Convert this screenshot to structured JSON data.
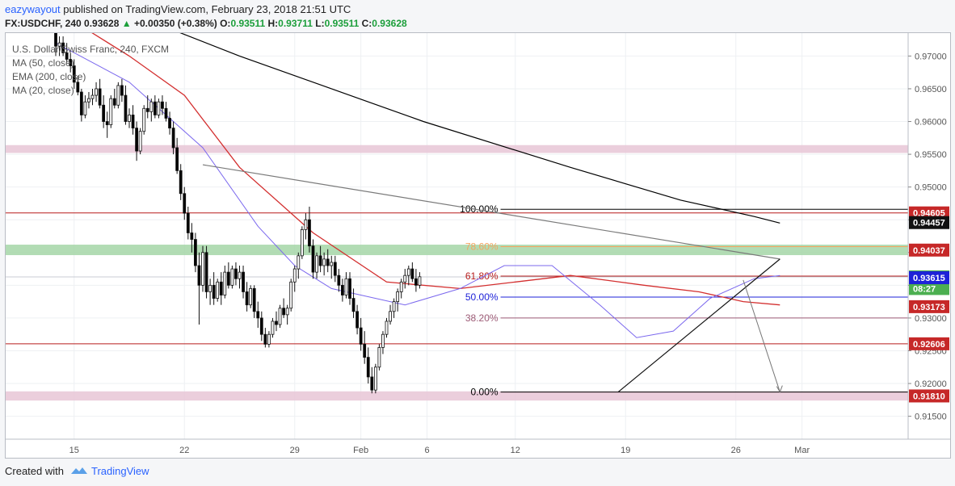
{
  "header": {
    "publisher": "eazywayout",
    "published_text": "published on TradingView.com, February 23, 2018 21:51 UTC",
    "symbol": "FX:USDCHF, 240",
    "last": "0.93628",
    "change": "+0.00350 (+0.38%)",
    "o_label": "O:",
    "o": "0.93511",
    "h_label": "H:",
    "h": "0.93711",
    "l_label": "L:",
    "l": "0.93511",
    "c_label": "C:",
    "c": "0.93628"
  },
  "legend": {
    "title": "U.S. Dollar/Swiss Franc, 240, FXCM",
    "ma50": "MA (50, close)",
    "ema200": "EMA (200, close)",
    "ma20": "MA (20, close)"
  },
  "footer": {
    "created_with": "Created with",
    "brand": "TradingView"
  },
  "colors": {
    "up": "#ffffff",
    "down": "#000000",
    "ma50": "#000000",
    "ema200": "#d32f2f",
    "ma20": "#7b68ee",
    "fib_line": "#b71c1c",
    "band_pink": "#e8c6d6",
    "band_green": "#a5d6a7",
    "current_price_bg": "#4caf50",
    "blue_line": "#1e22d8"
  },
  "chart_data": {
    "type": "candlestick",
    "ylim": [
      0.9115,
      0.9735
    ],
    "y_ticks": [
      "0.97000",
      "0.96500",
      "0.96000",
      "0.95500",
      "0.95000",
      "0.94500",
      "0.94000",
      "0.93500",
      "0.93000",
      "0.92500",
      "0.92000",
      "0.91500"
    ],
    "x_ticks": [
      {
        "label": "15",
        "i": 5
      },
      {
        "label": "22",
        "i": 35
      },
      {
        "label": "29",
        "i": 65
      },
      {
        "label": "Feb",
        "i": 83
      },
      {
        "label": "6",
        "i": 101
      },
      {
        "label": "12",
        "i": 125
      },
      {
        "label": "19",
        "i": 155
      },
      {
        "label": "26",
        "i": 185
      },
      {
        "label": "Mar",
        "i": 203
      }
    ],
    "n_slots": 210,
    "price_labels": [
      {
        "text": "0.94605",
        "value": 0.94605,
        "style": "red"
      },
      {
        "text": "0.94457",
        "value": 0.94457,
        "style": "black"
      },
      {
        "text": "0.94037",
        "value": 0.94037,
        "style": "red"
      },
      {
        "text": "0.93628",
        "value": 0.93628,
        "style": "green"
      },
      {
        "text": "08:27",
        "value": 0.9345,
        "style": "green"
      },
      {
        "text": "0.93615",
        "value": 0.93615,
        "style": "blue"
      },
      {
        "text": "0.93173",
        "value": 0.93173,
        "style": "red"
      },
      {
        "text": "0.92606",
        "value": 0.92606,
        "style": "red"
      },
      {
        "text": "0.91810",
        "value": 0.9181,
        "style": "red"
      }
    ],
    "fib_levels": [
      {
        "label": "100.00%",
        "value": 0.9466,
        "color": "#000000"
      },
      {
        "label": "78.60%",
        "value": 0.9409,
        "color": "#f4a460"
      },
      {
        "label": "61.80%",
        "value": 0.9364,
        "color": "#b71c1c"
      },
      {
        "label": "50.00%",
        "value": 0.9332,
        "color": "#1e22d8"
      },
      {
        "label": "38.20%",
        "value": 0.93,
        "color": "#9c5a75"
      },
      {
        "label": "0.00%",
        "value": 0.9187,
        "color": "#000000"
      }
    ],
    "horizontal_lines": [
      0.94605,
      0.92606,
      0.93615
    ],
    "bands": [
      {
        "from": 0.9552,
        "to": 0.9564,
        "color": "pink"
      },
      {
        "from": 0.9396,
        "to": 0.9412,
        "color": "green"
      },
      {
        "from": 0.9174,
        "to": 0.9188,
        "color": "pink"
      }
    ],
    "trendlines": [
      {
        "from": {
          "i": 40,
          "v": 0.9534
        },
        "to": {
          "i": 197,
          "v": 0.939
        }
      },
      {
        "from": {
          "i": 153,
          "v": 0.9187
        },
        "to": {
          "i": 197,
          "v": 0.939
        }
      }
    ],
    "projection": [
      {
        "i": 187,
        "v": 0.9358
      },
      {
        "i": 197,
        "v": 0.9187
      }
    ],
    "ohlc": [
      [
        0.974,
        0.9745,
        0.97,
        0.9715
      ],
      [
        0.9715,
        0.973,
        0.97,
        0.972
      ],
      [
        0.972,
        0.973,
        0.97,
        0.9705
      ],
      [
        0.9705,
        0.972,
        0.969,
        0.9695
      ],
      [
        0.9695,
        0.9705,
        0.9675,
        0.9685
      ],
      [
        0.9685,
        0.9695,
        0.965,
        0.966
      ],
      [
        0.966,
        0.967,
        0.964,
        0.9645
      ],
      [
        0.9645,
        0.965,
        0.96,
        0.961
      ],
      [
        0.961,
        0.964,
        0.9605,
        0.963
      ],
      [
        0.963,
        0.9645,
        0.962,
        0.9635
      ],
      [
        0.9635,
        0.965,
        0.9625,
        0.964
      ],
      [
        0.964,
        0.966,
        0.963,
        0.965
      ],
      [
        0.965,
        0.9665,
        0.962,
        0.9625
      ],
      [
        0.9625,
        0.964,
        0.959,
        0.96
      ],
      [
        0.96,
        0.9615,
        0.9575,
        0.9595
      ],
      [
        0.9595,
        0.964,
        0.959,
        0.9635
      ],
      [
        0.9635,
        0.965,
        0.962,
        0.9625
      ],
      [
        0.9625,
        0.966,
        0.962,
        0.9655
      ],
      [
        0.9655,
        0.9665,
        0.963,
        0.964
      ],
      [
        0.964,
        0.9655,
        0.9595,
        0.96
      ],
      [
        0.96,
        0.962,
        0.959,
        0.961
      ],
      [
        0.961,
        0.9625,
        0.958,
        0.959
      ],
      [
        0.959,
        0.96,
        0.954,
        0.9555
      ],
      [
        0.9555,
        0.959,
        0.955,
        0.9585
      ],
      [
        0.9585,
        0.9625,
        0.958,
        0.962
      ],
      [
        0.962,
        0.964,
        0.9605,
        0.9615
      ],
      [
        0.9615,
        0.9635,
        0.96,
        0.963
      ],
      [
        0.963,
        0.964,
        0.9605,
        0.961
      ],
      [
        0.961,
        0.9635,
        0.9605,
        0.963
      ],
      [
        0.963,
        0.964,
        0.961,
        0.962
      ],
      [
        0.962,
        0.963,
        0.96,
        0.9605
      ],
      [
        0.9605,
        0.9615,
        0.958,
        0.959
      ],
      [
        0.959,
        0.96,
        0.955,
        0.956
      ],
      [
        0.956,
        0.9575,
        0.952,
        0.9525
      ],
      [
        0.9525,
        0.9535,
        0.948,
        0.949
      ],
      [
        0.949,
        0.95,
        0.945,
        0.946
      ],
      [
        0.946,
        0.947,
        0.942,
        0.943
      ],
      [
        0.943,
        0.9445,
        0.94,
        0.942
      ],
      [
        0.942,
        0.943,
        0.937,
        0.938
      ],
      [
        0.938,
        0.94,
        0.929,
        0.935
      ],
      [
        0.935,
        0.941,
        0.934,
        0.94
      ],
      [
        0.94,
        0.941,
        0.933,
        0.934
      ],
      [
        0.934,
        0.936,
        0.932,
        0.935
      ],
      [
        0.935,
        0.937,
        0.932,
        0.933
      ],
      [
        0.933,
        0.936,
        0.9325,
        0.9355
      ],
      [
        0.9355,
        0.937,
        0.932,
        0.9335
      ],
      [
        0.9335,
        0.938,
        0.933,
        0.937
      ],
      [
        0.937,
        0.9385,
        0.9345,
        0.935
      ],
      [
        0.935,
        0.938,
        0.9345,
        0.9375
      ],
      [
        0.9375,
        0.9385,
        0.935,
        0.936
      ],
      [
        0.936,
        0.938,
        0.9345,
        0.937
      ],
      [
        0.937,
        0.938,
        0.933,
        0.934
      ],
      [
        0.934,
        0.9355,
        0.931,
        0.932
      ],
      [
        0.932,
        0.935,
        0.9315,
        0.9345
      ],
      [
        0.9345,
        0.935,
        0.93,
        0.931
      ],
      [
        0.931,
        0.9325,
        0.9285,
        0.93
      ],
      [
        0.93,
        0.931,
        0.9265,
        0.9275
      ],
      [
        0.9275,
        0.9285,
        0.9255,
        0.926
      ],
      [
        0.926,
        0.928,
        0.9255,
        0.9275
      ],
      [
        0.9275,
        0.93,
        0.927,
        0.9295
      ],
      [
        0.9295,
        0.931,
        0.928,
        0.929
      ],
      [
        0.929,
        0.932,
        0.9285,
        0.9315
      ],
      [
        0.9315,
        0.933,
        0.93,
        0.9305
      ],
      [
        0.9305,
        0.932,
        0.929,
        0.9315
      ],
      [
        0.9315,
        0.936,
        0.931,
        0.9355
      ],
      [
        0.9355,
        0.938,
        0.934,
        0.9375
      ],
      [
        0.9375,
        0.94,
        0.936,
        0.9395
      ],
      [
        0.9395,
        0.944,
        0.939,
        0.9435
      ],
      [
        0.9435,
        0.946,
        0.942,
        0.945
      ],
      [
        0.945,
        0.947,
        0.94,
        0.941
      ],
      [
        0.941,
        0.942,
        0.936,
        0.937
      ],
      [
        0.937,
        0.94,
        0.936,
        0.9395
      ],
      [
        0.9395,
        0.941,
        0.937,
        0.938
      ],
      [
        0.938,
        0.94,
        0.9365,
        0.939
      ],
      [
        0.939,
        0.9405,
        0.937,
        0.938
      ],
      [
        0.938,
        0.9395,
        0.936,
        0.9385
      ],
      [
        0.9385,
        0.9395,
        0.9355,
        0.9365
      ],
      [
        0.9365,
        0.9375,
        0.934,
        0.935
      ],
      [
        0.935,
        0.936,
        0.9325,
        0.9335
      ],
      [
        0.9335,
        0.937,
        0.933,
        0.936
      ],
      [
        0.936,
        0.937,
        0.932,
        0.933
      ],
      [
        0.933,
        0.9345,
        0.93,
        0.931
      ],
      [
        0.931,
        0.932,
        0.9275,
        0.9285
      ],
      [
        0.9285,
        0.93,
        0.925,
        0.926
      ],
      [
        0.926,
        0.928,
        0.923,
        0.924
      ],
      [
        0.924,
        0.9255,
        0.92,
        0.921
      ],
      [
        0.921,
        0.9225,
        0.9185,
        0.919
      ],
      [
        0.919,
        0.923,
        0.9185,
        0.9225
      ],
      [
        0.9225,
        0.926,
        0.922,
        0.9255
      ],
      [
        0.9255,
        0.928,
        0.9245,
        0.9275
      ],
      [
        0.9275,
        0.93,
        0.927,
        0.9295
      ],
      [
        0.9295,
        0.932,
        0.929,
        0.931
      ],
      [
        0.931,
        0.933,
        0.93,
        0.9325
      ],
      [
        0.9325,
        0.9345,
        0.931,
        0.934
      ],
      [
        0.934,
        0.936,
        0.933,
        0.9355
      ],
      [
        0.9355,
        0.9375,
        0.9345,
        0.9365
      ],
      [
        0.9365,
        0.938,
        0.935,
        0.9375
      ],
      [
        0.9375,
        0.9385,
        0.9355,
        0.936
      ],
      [
        0.936,
        0.9375,
        0.934,
        0.935
      ],
      [
        0.935,
        0.937,
        0.9345,
        0.9363
      ]
    ],
    "ma50": [
      [
        0,
        0.981
      ],
      [
        50,
        0.97
      ],
      [
        100,
        0.96
      ],
      [
        140,
        0.953
      ],
      [
        170,
        0.948
      ],
      [
        190,
        0.9455
      ],
      [
        197,
        0.9445
      ]
    ],
    "ema200": [
      [
        0,
        0.977
      ],
      [
        20,
        0.97
      ],
      [
        35,
        0.964
      ],
      [
        50,
        0.953
      ],
      [
        70,
        0.943
      ],
      [
        90,
        0.9355
      ],
      [
        110,
        0.9345
      ],
      [
        125,
        0.9355
      ],
      [
        140,
        0.9365
      ],
      [
        160,
        0.935
      ],
      [
        175,
        0.934
      ],
      [
        187,
        0.9325
      ],
      [
        197,
        0.932
      ]
    ],
    "ma20": [
      [
        0,
        0.972
      ],
      [
        20,
        0.966
      ],
      [
        40,
        0.956
      ],
      [
        55,
        0.944
      ],
      [
        65,
        0.938
      ],
      [
        75,
        0.9345
      ],
      [
        95,
        0.932
      ],
      [
        110,
        0.9345
      ],
      [
        122,
        0.938
      ],
      [
        135,
        0.938
      ],
      [
        148,
        0.932
      ],
      [
        158,
        0.927
      ],
      [
        168,
        0.928
      ],
      [
        178,
        0.933
      ],
      [
        190,
        0.936
      ],
      [
        197,
        0.9365
      ]
    ]
  }
}
